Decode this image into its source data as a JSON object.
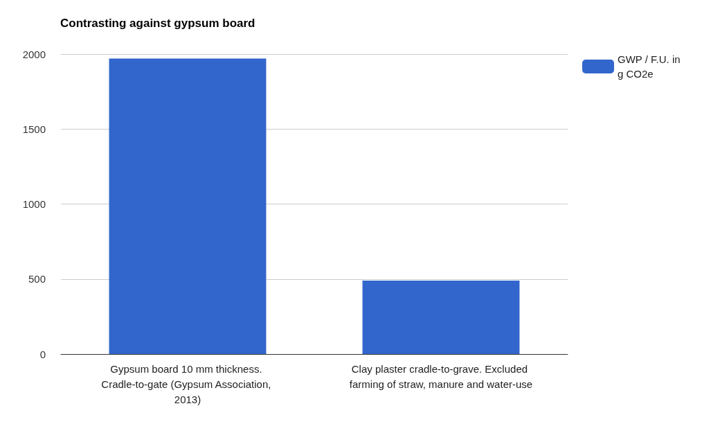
{
  "chart_data": {
    "type": "bar",
    "title": "Contrasting against gypsum board",
    "categories": [
      "Gypsum board 10 mm thickness. Cradle-to-gate (Gypsum Association, 2013)",
      "Clay plaster cradle-to-grave. Excluded farming of straw, manure and water-use"
    ],
    "series": [
      {
        "name": "GWP / F.U. in g CO2e",
        "color": "#3366cc",
        "values": [
          1970,
          490
        ]
      }
    ],
    "ylim": [
      0,
      2000
    ],
    "yticks": [
      0,
      500,
      1000,
      1500,
      2000
    ],
    "grid": "y",
    "legend": "top right"
  }
}
